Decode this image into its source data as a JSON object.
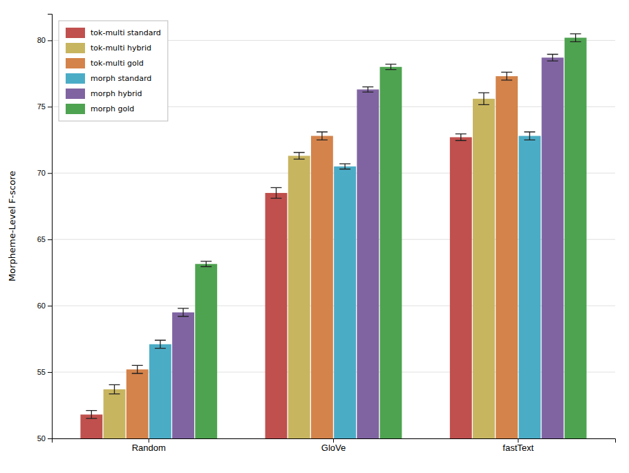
{
  "chart_data": {
    "type": "bar",
    "categories": [
      "Random",
      "GloVe",
      "fastText"
    ],
    "series": [
      {
        "name": "tok-multi standard",
        "color": "#c0504d",
        "values": [
          51.8,
          68.5,
          72.7
        ],
        "errors": [
          0.3,
          0.4,
          0.25
        ]
      },
      {
        "name": "tok-multi hybrid",
        "color": "#c8b560",
        "values": [
          53.7,
          71.3,
          75.6
        ],
        "errors": [
          0.35,
          0.25,
          0.45
        ]
      },
      {
        "name": "tok-multi gold",
        "color": "#d4834a",
        "values": [
          55.2,
          72.8,
          77.3
        ],
        "errors": [
          0.3,
          0.3,
          0.3
        ]
      },
      {
        "name": "morph standard",
        "color": "#4bacc6",
        "values": [
          57.1,
          70.5,
          72.8
        ],
        "errors": [
          0.3,
          0.2,
          0.3
        ]
      },
      {
        "name": "morph hybrid",
        "color": "#8064a2",
        "values": [
          59.5,
          76.3,
          78.7
        ],
        "errors": [
          0.3,
          0.2,
          0.25
        ]
      },
      {
        "name": "morph gold",
        "color": "#4ea350",
        "values": [
          63.15,
          78.0,
          80.2
        ],
        "errors": [
          0.2,
          0.2,
          0.3
        ]
      }
    ],
    "ylabel": "Morpheme-Level F-score",
    "ylim": [
      50,
      82
    ],
    "yticks": [
      50,
      55,
      60,
      65,
      70,
      75,
      80
    ],
    "grid": true,
    "legend": "upper left"
  }
}
